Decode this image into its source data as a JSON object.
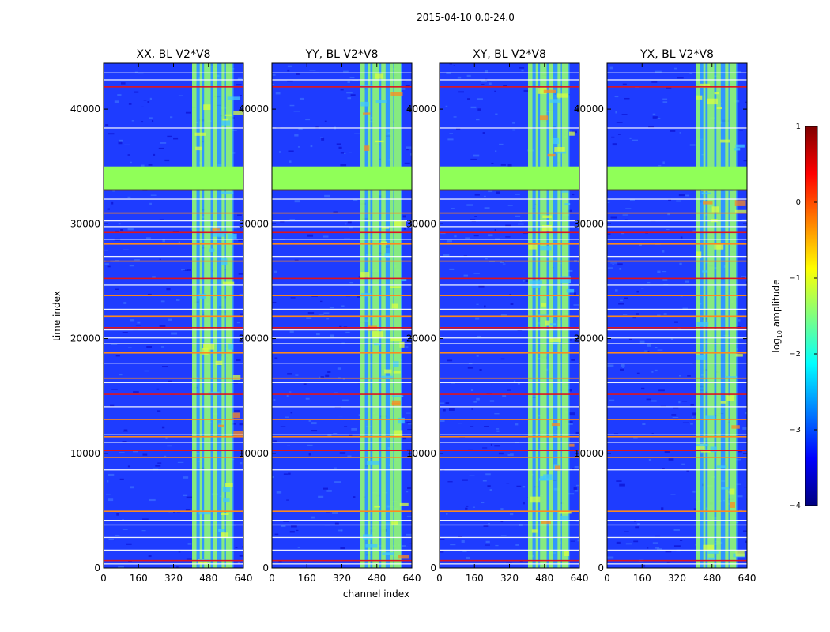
{
  "figure": {
    "suptitle": "2015-04-10 0.0-24.0",
    "ylabel": "time index",
    "xlabel": "channel index",
    "colorbar_label": "log",
    "colorbar_label_sub": "10",
    "colorbar_label_rest": " amplitude"
  },
  "colors": {
    "background_blue": "#1e3cff",
    "deep_blue": "#0a10d0",
    "flag_green": "#90ff58",
    "rfi_orange": "#ff8a1c",
    "rfi_red": "#e0141c",
    "band_cyan": "#40e0ff",
    "band_green": "#9cff60"
  },
  "chart_data": {
    "type": "heatmap",
    "panels": [
      {
        "title": "XX, BL V2*V8"
      },
      {
        "title": "YY, BL V2*V8"
      },
      {
        "title": "XY, BL V2*V8"
      },
      {
        "title": "YX, BL V2*V8"
      }
    ],
    "xlim": [
      0,
      640
    ],
    "ylim": [
      0,
      44000
    ],
    "xticks": [
      0,
      160,
      320,
      480,
      640
    ],
    "yticks": [
      0,
      10000,
      20000,
      30000,
      40000
    ],
    "colorbar": {
      "range": [
        -4,
        1
      ],
      "ticks": [
        1,
        0,
        -1,
        -2,
        -3,
        -4
      ],
      "tick_labels": [
        "1",
        "0",
        "−1",
        "−2",
        "−3",
        "−4"
      ],
      "colormap": "jet"
    },
    "flagged_time_block": [
      33000,
      35000
    ],
    "bright_channel_columns": [
      [
        405,
        425
      ],
      [
        440,
        450
      ],
      [
        460,
        490
      ],
      [
        500,
        520
      ],
      [
        540,
        555
      ],
      [
        560,
        590
      ]
    ],
    "bright_band_channels": [
      405,
      595
    ],
    "rfi_time_rows": [
      700,
      5000,
      9700,
      10300,
      11500,
      13000,
      15200,
      16600,
      18800,
      21000,
      22000,
      23800,
      25300,
      26800,
      28300,
      29300,
      31000,
      33000,
      42000
    ],
    "white_gap_rows": [
      400,
      1600,
      2700,
      3800,
      4200,
      8600,
      11000,
      11700,
      14100,
      16200,
      17900,
      19600,
      20100,
      20800,
      22600,
      24700,
      27200,
      28700,
      29800,
      30300,
      32200,
      42600,
      43200,
      38400
    ],
    "time_segment_breaks": [
      9300,
      33000
    ]
  }
}
